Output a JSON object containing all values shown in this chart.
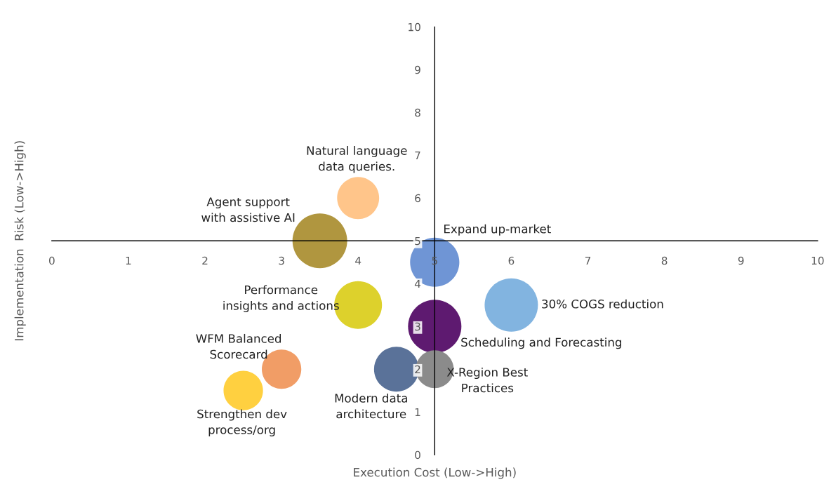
{
  "chart_data": {
    "type": "bubble",
    "xlabel": "Execution Cost (Low->High)",
    "ylabel": "Implementation  Risk (Low->High)",
    "xlim": [
      0,
      10
    ],
    "ylim": [
      0,
      10
    ],
    "xticks": [
      0,
      1,
      2,
      3,
      4,
      5,
      6,
      7,
      8,
      9,
      10
    ],
    "yticks": [
      0,
      1,
      2,
      3,
      4,
      5,
      6,
      7,
      8,
      9,
      10
    ],
    "series": [
      {
        "name": "Natural language\ndata queries.",
        "color": "#ffc58a",
        "x": [
          4.0
        ],
        "values": [
          6.0
        ],
        "sizes": [
          0.59
        ]
      },
      {
        "name": "Agent support\nwith assistive AI",
        "color": "#b0963f",
        "x": [
          3.5
        ],
        "values": [
          5.0
        ],
        "sizes": [
          1.0
        ]
      },
      {
        "name": "Expand up-market",
        "color": "#6f95d5",
        "x": [
          5.0
        ],
        "values": [
          4.5
        ],
        "sizes": [
          0.81
        ]
      },
      {
        "name": "Performance\ninsights and actions",
        "color": "#ddd12c",
        "x": [
          4.0
        ],
        "values": [
          3.5
        ],
        "sizes": [
          0.76
        ]
      },
      {
        "name": "30% COGS reduction",
        "color": "#82b4e0",
        "x": [
          6.0
        ],
        "values": [
          3.5
        ],
        "sizes": [
          0.95
        ]
      },
      {
        "name": "Scheduling and Forecasting",
        "color": "#5e1a70",
        "x": [
          5.0
        ],
        "values": [
          3.0
        ],
        "sizes": [
          0.95
        ]
      },
      {
        "name": "Modern data\narchitecture",
        "color": "#5a7299",
        "x": [
          4.5
        ],
        "values": [
          2.0
        ],
        "sizes": [
          0.67
        ]
      },
      {
        "name": "X-Region Best\nPractices",
        "color": "#8b8b8b",
        "x": [
          5.0
        ],
        "values": [
          2.0
        ],
        "sizes": [
          0.48
        ]
      },
      {
        "name": "WFM Balanced\nScorecard",
        "color": "#f19d66",
        "x": [
          3.0
        ],
        "values": [
          2.0
        ],
        "sizes": [
          0.52
        ]
      },
      {
        "name": "Strengthen dev\nprocess/org",
        "color": "#ffd040",
        "x": [
          2.5
        ],
        "values": [
          1.5
        ],
        "sizes": [
          0.52
        ]
      }
    ]
  }
}
